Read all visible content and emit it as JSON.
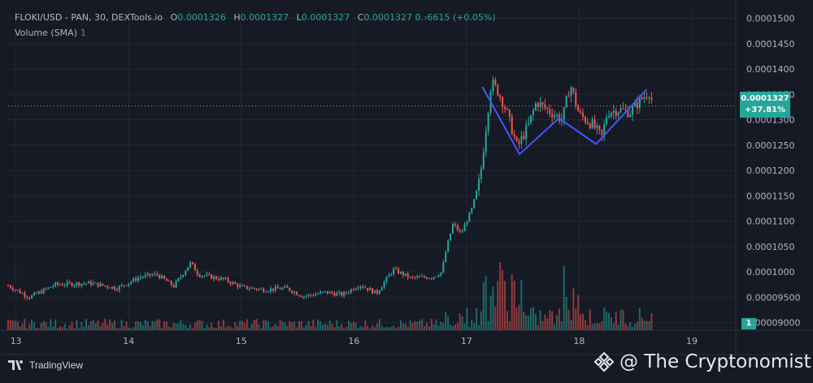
{
  "legend": {
    "symbol": "FLOKI/USD - PAN, 30, DEXTools.io",
    "o_label": "O",
    "o_value": "0.0001326",
    "h_label": "H",
    "h_value": "0.0001327",
    "l_label": "L",
    "l_value": "0.0001327",
    "c_label": "C",
    "c_value": "0.0001327",
    "change": "0.₇6615 (+0.05%)",
    "volume_label": "Volume (SMA)",
    "volume_value": "1"
  },
  "price_tag": {
    "price": "0.0001327",
    "change": "+37.81%"
  },
  "volume_tag": "1",
  "branding": {
    "tradingview": "TradingView",
    "watermark": "@ The Cryptonomist"
  },
  "colors": {
    "up": "#26a69a",
    "down": "#ef5350",
    "pattern": "#3d5afe",
    "background": "#161a25",
    "grid": "#232735",
    "text": "#b2b5be"
  },
  "chart_data": {
    "type": "candlestick",
    "y_ticks": [
      "0.0001500",
      "0.0001450",
      "0.0001400",
      "0.0001350",
      "0.0001300",
      "0.0001250",
      "0.0001200",
      "0.0001150",
      "0.0001100",
      "0.0001050",
      "0.0001000",
      "0.00009500",
      "0.00009000"
    ],
    "y_range": [
      8.85e-05,
      0.000152
    ],
    "x_ticks": [
      "13",
      "14",
      "15",
      "16",
      "17",
      "18",
      "19"
    ],
    "x_range": [
      12.93,
      19.39
    ],
    "current_price": 0.0001327,
    "pivots": [
      [
        12.93,
        9.73e-05
      ],
      [
        13.12,
        9.5e-05
      ],
      [
        13.35,
        9.75e-05
      ],
      [
        13.65,
        9.78e-05
      ],
      [
        13.9,
        9.68e-05
      ],
      [
        14.1,
        9.9e-05
      ],
      [
        14.25,
        9.95e-05
      ],
      [
        14.4,
        9.72e-05
      ],
      [
        14.55,
        0.0001018
      ],
      [
        14.62,
        9.95e-05
      ],
      [
        14.85,
        9.85e-05
      ],
      [
        15.0,
        9.7e-05
      ],
      [
        15.2,
        9.65e-05
      ],
      [
        15.4,
        9.68e-05
      ],
      [
        15.55,
        9.52e-05
      ],
      [
        15.75,
        9.6e-05
      ],
      [
        15.9,
        9.55e-05
      ],
      [
        16.05,
        9.75e-05
      ],
      [
        16.2,
        9.58e-05
      ],
      [
        16.35,
        0.0001005
      ],
      [
        16.5,
        9.88e-05
      ],
      [
        16.7,
        9.9e-05
      ],
      [
        16.78,
        0.0001
      ],
      [
        16.82,
        0.0001045
      ],
      [
        16.88,
        0.0001095
      ],
      [
        16.95,
        0.0001075
      ],
      [
        17.05,
        0.0001125
      ],
      [
        17.12,
        0.0001185
      ],
      [
        17.18,
        0.00013
      ],
      [
        17.22,
        0.0001375
      ],
      [
        17.28,
        0.0001355
      ],
      [
        17.35,
        0.000132
      ],
      [
        17.45,
        0.0001245
      ],
      [
        17.55,
        0.000129
      ],
      [
        17.62,
        0.0001335
      ],
      [
        17.75,
        0.0001315
      ],
      [
        17.85,
        0.00013
      ],
      [
        17.92,
        0.000137
      ],
      [
        18.0,
        0.000131
      ],
      [
        18.12,
        0.000129
      ],
      [
        18.2,
        0.0001265
      ],
      [
        18.25,
        0.0001315
      ],
      [
        18.35,
        0.000132
      ],
      [
        18.45,
        0.0001315
      ],
      [
        18.55,
        0.000134
      ],
      [
        18.62,
        0.0001355
      ],
      [
        18.66,
        0.0001327
      ]
    ],
    "pattern_line": [
      [
        17.14,
        0.0001365
      ],
      [
        17.47,
        0.0001232
      ],
      [
        17.82,
        0.0001303
      ],
      [
        18.15,
        0.0001252
      ],
      [
        18.6,
        0.000136
      ]
    ],
    "volume_range": [
      0,
      20
    ],
    "volume_note": "spikes near 17.2-17.5 and 17.9-18.0"
  }
}
